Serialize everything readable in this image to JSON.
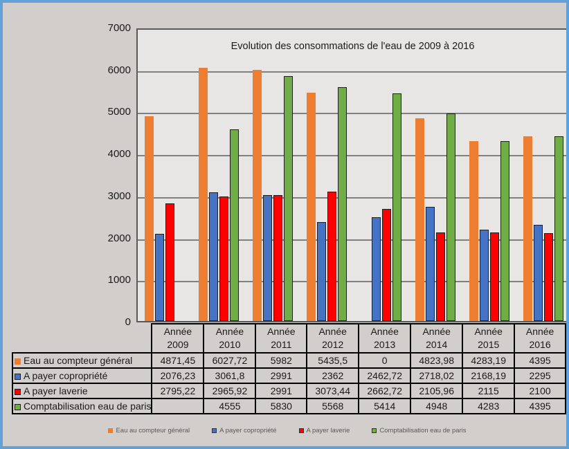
{
  "frame": {
    "border_color": "#62A0D8",
    "background": "#D1CECB"
  },
  "chart_data": {
    "type": "bar",
    "title": "Evolution des consommations de l'eau  de 2009 à 2016",
    "year_label": "Année",
    "years": [
      "2009",
      "2010",
      "2011",
      "2012",
      "2013",
      "2014",
      "2015",
      "2016"
    ],
    "categories": [
      "Année 2009",
      "Année 2010",
      "Année 2011",
      "Année 2012",
      "Année 2013",
      "Année 2014",
      "Année 2015",
      "Année 2016"
    ],
    "ylim": [
      0,
      7000
    ],
    "ytick_interval": 1000,
    "yticks": [
      "7000",
      "6000",
      "5000",
      "4000",
      "3000",
      "2000",
      "1000",
      "0"
    ],
    "grid": true,
    "legend_position": "bottom",
    "plot_background": "#E8E6E4",
    "gridline_color": "#808080",
    "series": [
      {
        "name": "Eau au compteur général",
        "color": "#ED7D31",
        "outlined": false,
        "values": [
          4871.45,
          6027.72,
          5982,
          5435.5,
          0,
          4823.98,
          4283.19,
          4395
        ],
        "display": [
          "4871,45",
          "6027,72",
          "5982",
          "5435,5",
          "0",
          "4823,98",
          "4283,19",
          "4395"
        ]
      },
      {
        "name": "A payer copropriété",
        "color": "#4472C4",
        "outlined": true,
        "values": [
          2076.23,
          3061.8,
          2991,
          2362,
          2462.72,
          2718.02,
          2168.19,
          2295
        ],
        "display": [
          "2076,23",
          "3061,8",
          "2991",
          "2362",
          "2462,72",
          "2718,02",
          "2168,19",
          "2295"
        ]
      },
      {
        "name": "A payer laverie",
        "color": "#FF0000",
        "outlined": true,
        "values": [
          2795.22,
          2965.92,
          2991,
          3073.44,
          2662.72,
          2105.96,
          2115,
          2100
        ],
        "display": [
          "2795,22",
          "2965,92",
          "2991",
          "3073,44",
          "2662,72",
          "2105,96",
          "2115",
          "2100"
        ]
      },
      {
        "name": "Comptabilisation eau de paris",
        "color": "#70AD47",
        "outlined": true,
        "values": [
          null,
          4555,
          5830,
          5568,
          5414,
          4948,
          4283,
          4395
        ],
        "display": [
          "",
          "4555",
          "5830",
          "5568",
          "5414",
          "4948",
          "4283",
          "4395"
        ]
      }
    ]
  }
}
